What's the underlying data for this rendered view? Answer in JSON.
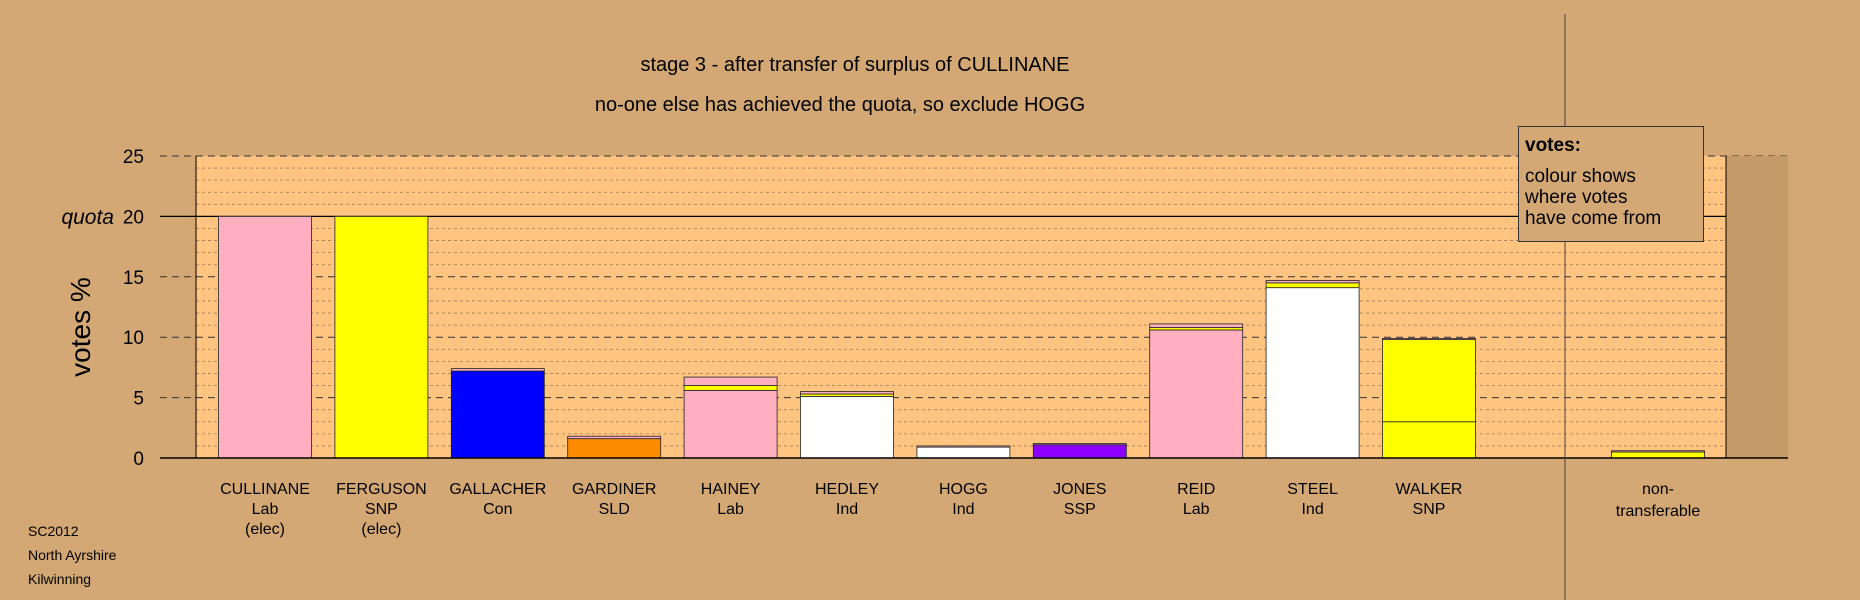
{
  "chart_data": {
    "type": "bar",
    "title": "stage 3 - after transfer of surplus of CULLINANE",
    "subtitle": "no-one else has achieved the quota, so exclude HOGG",
    "ylabel": "votes %",
    "ylim": [
      0,
      25
    ],
    "yticks": [
      "0",
      "5",
      "10",
      "15",
      "20",
      "25"
    ],
    "quota": 20,
    "quota_label": "quota",
    "grid": true,
    "colors": {
      "background": "#d4a874",
      "plot_area": "#ffc47f",
      "Lab": "#ffafc0",
      "SNP": "#ffff00",
      "Con": "#0000ff",
      "SLD": "#ff8c00",
      "Ind": "#ffffff",
      "SSP": "#8b00ff"
    },
    "categories": [
      {
        "name": "CULLINANE",
        "party": "Lab",
        "note": "(elec)",
        "segments": [
          {
            "party": "Lab",
            "value": 20.0
          }
        ]
      },
      {
        "name": "FERGUSON",
        "party": "SNP",
        "note": "(elec)",
        "segments": [
          {
            "party": "SNP",
            "value": 20.0
          }
        ]
      },
      {
        "name": "GALLACHER",
        "party": "Con",
        "note": "",
        "segments": [
          {
            "party": "Con",
            "value": 7.2
          },
          {
            "party": "Lab",
            "value": 0.2
          }
        ]
      },
      {
        "name": "GARDINER",
        "party": "SLD",
        "note": "",
        "segments": [
          {
            "party": "SLD",
            "value": 1.6
          },
          {
            "party": "Lab",
            "value": 0.2
          }
        ]
      },
      {
        "name": "HAINEY",
        "party": "Lab",
        "note": "",
        "segments": [
          {
            "party": "Lab",
            "value": 5.6
          },
          {
            "party": "SNP",
            "value": 0.4
          },
          {
            "party": "Lab",
            "value": 0.7
          }
        ]
      },
      {
        "name": "HEDLEY",
        "party": "Ind",
        "note": "",
        "segments": [
          {
            "party": "Ind",
            "value": 5.1
          },
          {
            "party": "SNP",
            "value": 0.2
          },
          {
            "party": "Lab",
            "value": 0.2
          }
        ]
      },
      {
        "name": "HOGG",
        "party": "Ind",
        "note": "",
        "segments": [
          {
            "party": "Ind",
            "value": 0.9
          },
          {
            "party": "Lab",
            "value": 0.1
          }
        ]
      },
      {
        "name": "JONES",
        "party": "SSP",
        "note": "",
        "segments": [
          {
            "party": "SSP",
            "value": 1.1
          },
          {
            "party": "Lab",
            "value": 0.1
          }
        ]
      },
      {
        "name": "REID",
        "party": "Lab",
        "note": "",
        "segments": [
          {
            "party": "Lab",
            "value": 10.6
          },
          {
            "party": "SNP",
            "value": 0.2
          },
          {
            "party": "Lab",
            "value": 0.3
          }
        ]
      },
      {
        "name": "STEEL",
        "party": "Ind",
        "note": "",
        "segments": [
          {
            "party": "Ind",
            "value": 14.1
          },
          {
            "party": "SNP",
            "value": 0.4
          },
          {
            "party": "Lab",
            "value": 0.2
          }
        ]
      },
      {
        "name": "WALKER",
        "party": "SNP",
        "note": "",
        "segments": [
          {
            "party": "SNP",
            "value": 3.0
          },
          {
            "party": "SNP",
            "value": 6.8
          },
          {
            "party": "Lab",
            "value": 0.1
          }
        ]
      }
    ],
    "nontransferable": {
      "label_line1": "non-",
      "label_line2": "transferable",
      "segments": [
        {
          "party": "SNP",
          "value": 0.5
        },
        {
          "party": "Lab",
          "value": 0.1
        }
      ]
    },
    "legend": {
      "title": "votes:",
      "text": "colour shows\nwhere votes\nhave come from",
      "placement": "top-right"
    }
  },
  "footer": {
    "line1": "SC2012",
    "line2": "North Ayrshire",
    "line3": "Kilwinning"
  }
}
